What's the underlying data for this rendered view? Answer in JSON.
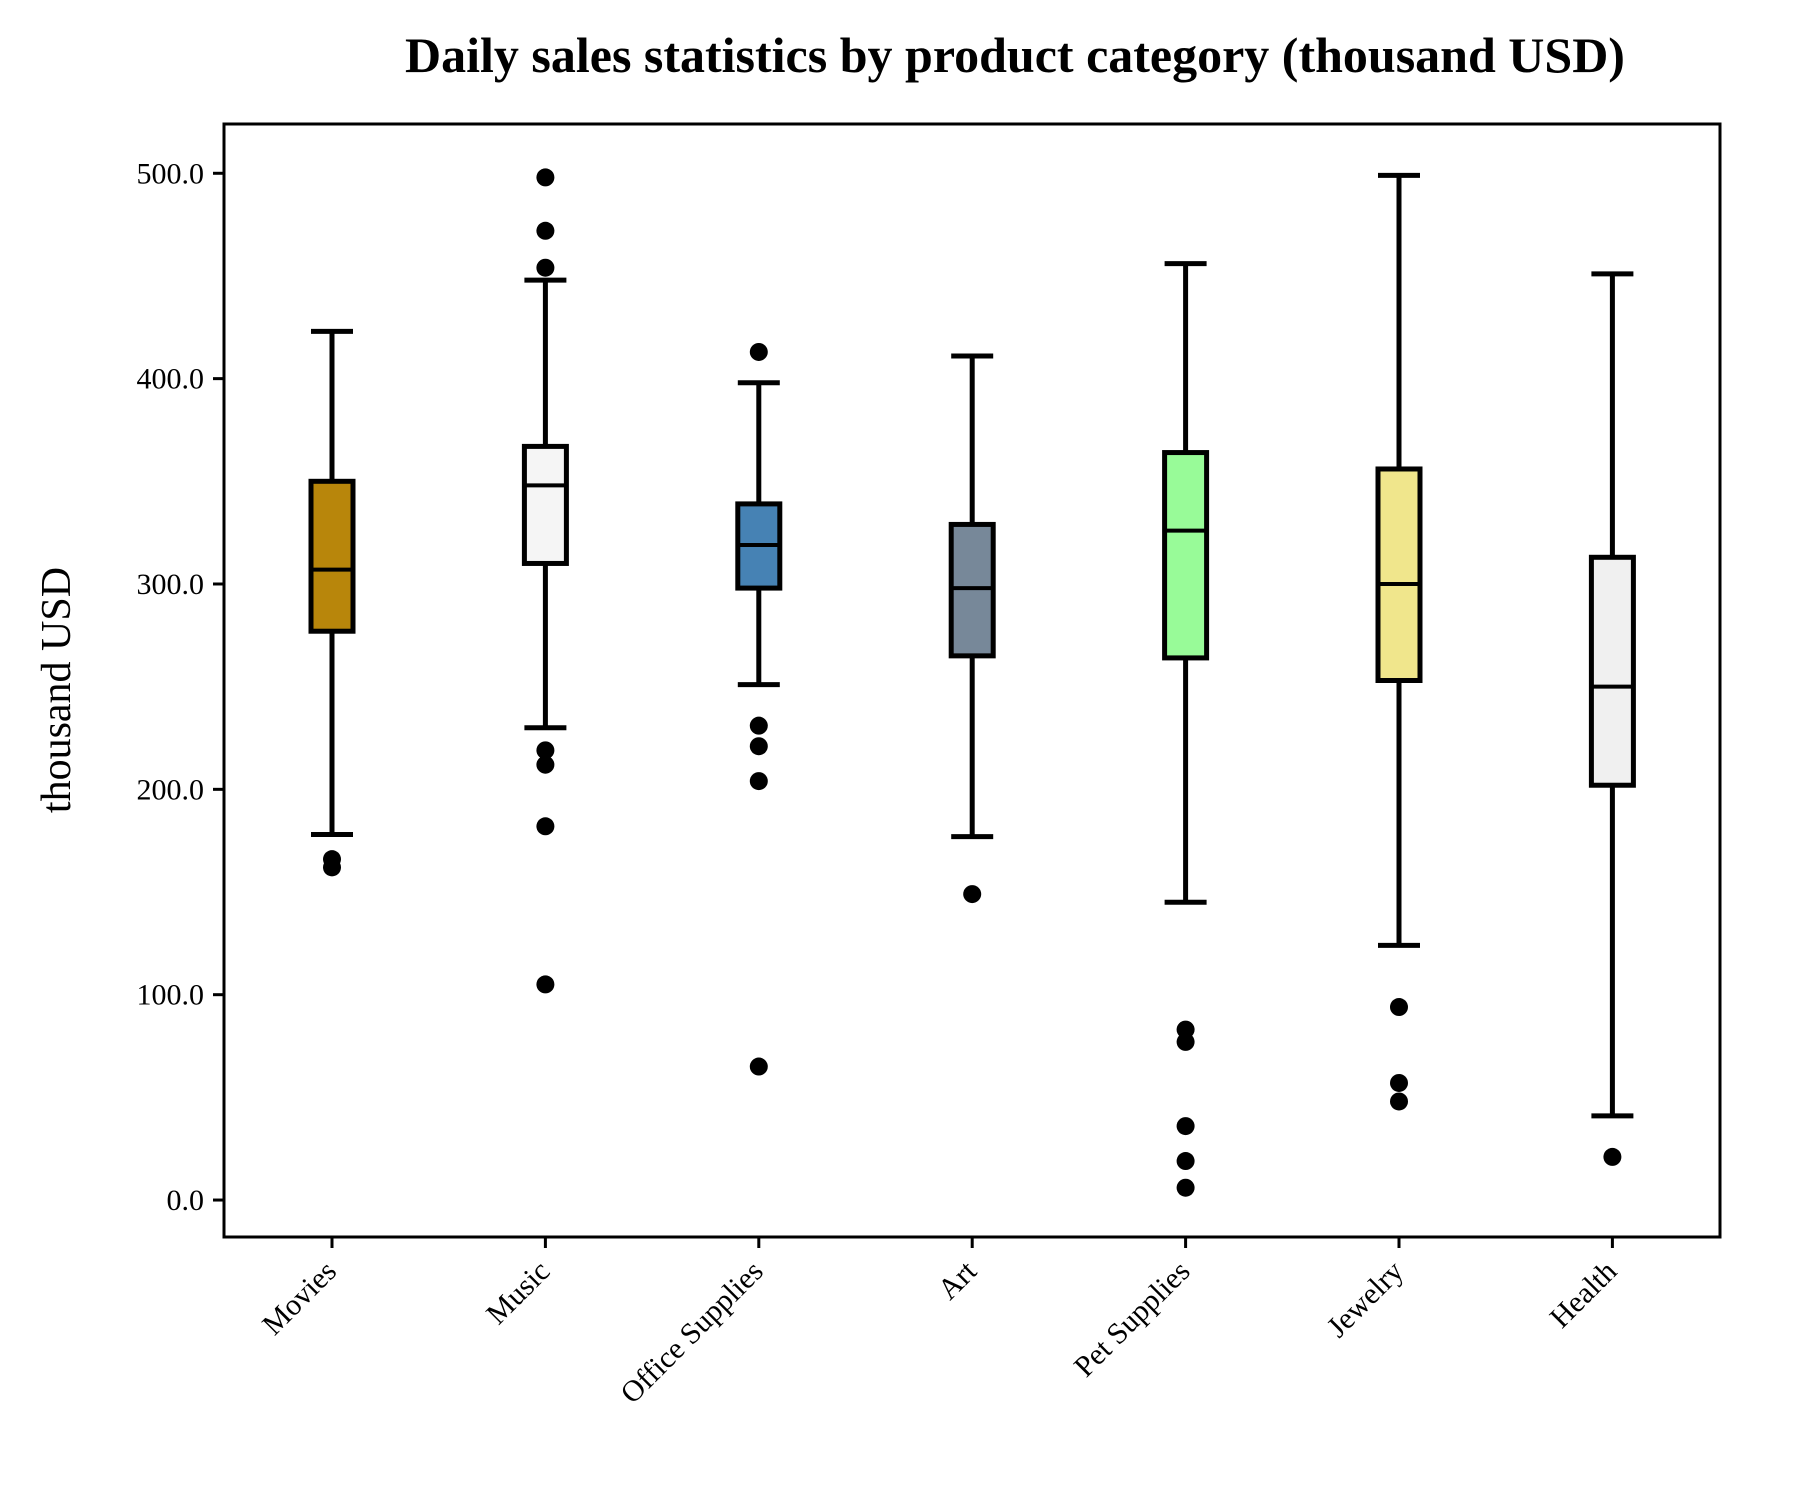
{
  "chart_data": {
    "type": "box",
    "title": "Daily sales statistics by product category (thousand USD)",
    "ylabel": "thousand USD",
    "xlabel": "",
    "ylim": [
      -18,
      524
    ],
    "yticks": [
      0,
      100,
      200,
      300,
      400,
      500
    ],
    "ytick_labels": [
      "0.0",
      "100.0",
      "200.0",
      "300.0",
      "400.0",
      "500.0"
    ],
    "grid": false,
    "legend": "none",
    "categories": [
      "Movies",
      "Music",
      "Office Supplies",
      "Art",
      "Pet Supplies",
      "Jewelry",
      "Health"
    ],
    "boxes": [
      {
        "category": "Movies",
        "color": "#b8860b",
        "whisker_low": 178,
        "q1": 277,
        "median": 307,
        "q3": 350,
        "whisker_high": 423,
        "outliers": [
          166,
          162
        ]
      },
      {
        "category": "Music",
        "color": "#f5f5f5",
        "whisker_low": 230,
        "q1": 310,
        "median": 348,
        "q3": 367,
        "whisker_high": 448,
        "outliers": [
          498,
          472,
          454,
          219,
          212,
          182,
          105
        ]
      },
      {
        "category": "Office Supplies",
        "color": "#4682b4",
        "whisker_low": 251,
        "q1": 298,
        "median": 319,
        "q3": 339,
        "whisker_high": 398,
        "outliers": [
          413,
          231,
          221,
          204,
          65
        ]
      },
      {
        "category": "Art",
        "color": "#778899",
        "whisker_low": 177,
        "q1": 265,
        "median": 298,
        "q3": 329,
        "whisker_high": 411,
        "outliers": [
          149
        ]
      },
      {
        "category": "Pet Supplies",
        "color": "#98fb98",
        "whisker_low": 145,
        "q1": 264,
        "median": 326,
        "q3": 364,
        "whisker_high": 456,
        "outliers": [
          83,
          77,
          36,
          19,
          6
        ]
      },
      {
        "category": "Jewelry",
        "color": "#f0e68c",
        "whisker_low": 124,
        "q1": 253,
        "median": 300,
        "q3": 356,
        "whisker_high": 499,
        "outliers": [
          94,
          57,
          48
        ]
      },
      {
        "category": "Health",
        "color": "#f0f0f0",
        "whisker_low": 41,
        "q1": 202,
        "median": 250,
        "q3": 313,
        "whisker_high": 451,
        "outliers": [
          21
        ]
      }
    ]
  }
}
